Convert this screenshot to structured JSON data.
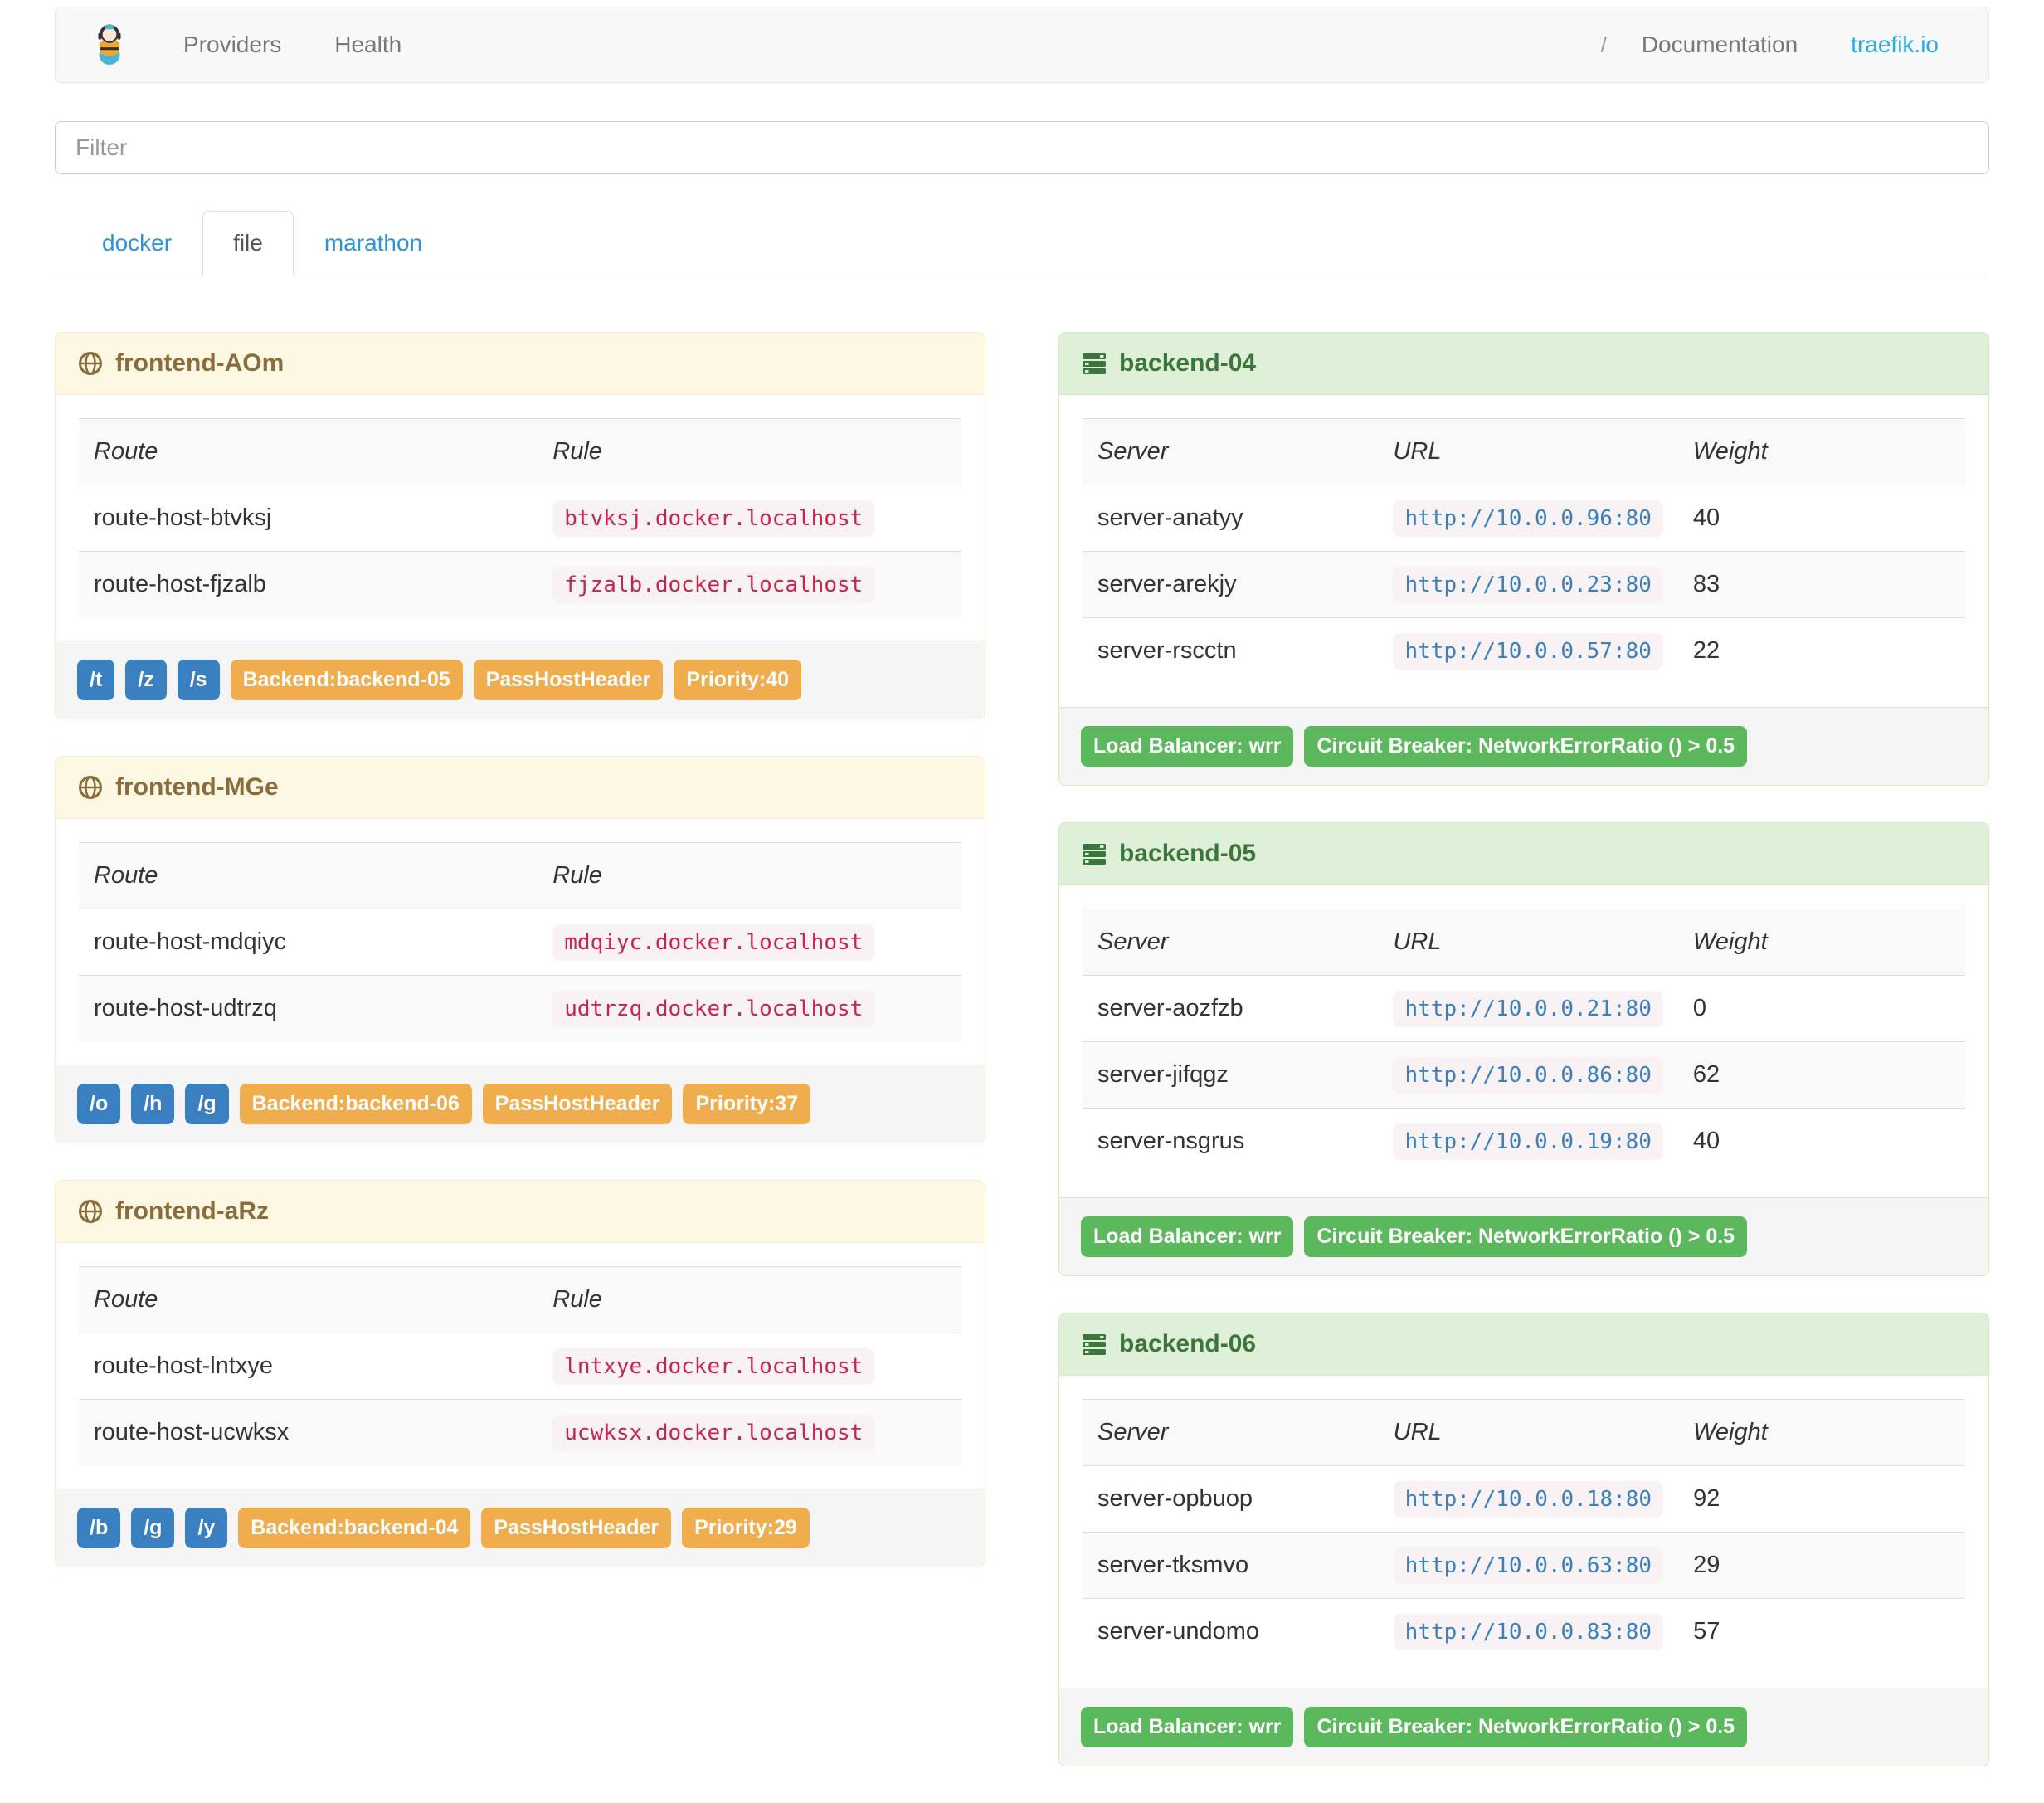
{
  "navbar": {
    "links": [
      {
        "label": "Providers"
      },
      {
        "label": "Health"
      }
    ],
    "divider": "/",
    "right_links": [
      {
        "label": "Documentation"
      },
      {
        "label": "traefik.io"
      }
    ]
  },
  "filter": {
    "placeholder": "Filter"
  },
  "tabs": [
    {
      "label": "docker",
      "active": false
    },
    {
      "label": "file",
      "active": true
    },
    {
      "label": "marathon",
      "active": false
    }
  ],
  "frontends": [
    {
      "title": "frontend-AOm",
      "columns": [
        "Route",
        "Rule"
      ],
      "routes": [
        {
          "route": "route-host-btvksj",
          "rule": "btvksj.docker.localhost"
        },
        {
          "route": "route-host-fjzalb",
          "rule": "fjzalb.docker.localhost"
        }
      ],
      "entry_badges": [
        "/t",
        "/z",
        "/s"
      ],
      "badges": [
        "Backend:backend-05",
        "PassHostHeader",
        "Priority:40"
      ]
    },
    {
      "title": "frontend-MGe",
      "columns": [
        "Route",
        "Rule"
      ],
      "routes": [
        {
          "route": "route-host-mdqiyc",
          "rule": "mdqiyc.docker.localhost"
        },
        {
          "route": "route-host-udtrzq",
          "rule": "udtrzq.docker.localhost"
        }
      ],
      "entry_badges": [
        "/o",
        "/h",
        "/g"
      ],
      "badges": [
        "Backend:backend-06",
        "PassHostHeader",
        "Priority:37"
      ]
    },
    {
      "title": "frontend-aRz",
      "columns": [
        "Route",
        "Rule"
      ],
      "routes": [
        {
          "route": "route-host-lntxye",
          "rule": "lntxye.docker.localhost"
        },
        {
          "route": "route-host-ucwksx",
          "rule": "ucwksx.docker.localhost"
        }
      ],
      "entry_badges": [
        "/b",
        "/g",
        "/y"
      ],
      "badges": [
        "Backend:backend-04",
        "PassHostHeader",
        "Priority:29"
      ]
    }
  ],
  "backends": [
    {
      "title": "backend-04",
      "columns": [
        "Server",
        "URL",
        "Weight"
      ],
      "servers": [
        {
          "server": "server-anatyy",
          "url": "http://10.0.0.96:80",
          "weight": "40"
        },
        {
          "server": "server-arekjy",
          "url": "http://10.0.0.23:80",
          "weight": "83"
        },
        {
          "server": "server-rscctn",
          "url": "http://10.0.0.57:80",
          "weight": "22"
        }
      ],
      "badges": [
        "Load Balancer: wrr",
        "Circuit Breaker: NetworkErrorRatio () > 0.5"
      ]
    },
    {
      "title": "backend-05",
      "columns": [
        "Server",
        "URL",
        "Weight"
      ],
      "servers": [
        {
          "server": "server-aozfzb",
          "url": "http://10.0.0.21:80",
          "weight": "0"
        },
        {
          "server": "server-jifqgz",
          "url": "http://10.0.0.86:80",
          "weight": "62"
        },
        {
          "server": "server-nsgrus",
          "url": "http://10.0.0.19:80",
          "weight": "40"
        }
      ],
      "badges": [
        "Load Balancer: wrr",
        "Circuit Breaker: NetworkErrorRatio () > 0.5"
      ]
    },
    {
      "title": "backend-06",
      "columns": [
        "Server",
        "URL",
        "Weight"
      ],
      "servers": [
        {
          "server": "server-opbuop",
          "url": "http://10.0.0.18:80",
          "weight": "92"
        },
        {
          "server": "server-tksmvo",
          "url": "http://10.0.0.63:80",
          "weight": "29"
        },
        {
          "server": "server-undomo",
          "url": "http://10.0.0.83:80",
          "weight": "57"
        }
      ],
      "badges": [
        "Load Balancer: wrr",
        "Circuit Breaker: NetworkErrorRatio () > 0.5"
      ]
    }
  ],
  "colors": {
    "accent_blue": "#3a80c0",
    "brand_blue": "#29abe2",
    "warning_orange": "#f0ad4e",
    "success_green": "#5cb85c",
    "frontend_header_bg": "#fcf8e3",
    "frontend_header_text": "#8a6d3b",
    "backend_header_bg": "#dff0d8",
    "backend_header_text": "#3c763d",
    "rule_code_text": "#c7254e",
    "code_bg": "#f9f2f4"
  }
}
